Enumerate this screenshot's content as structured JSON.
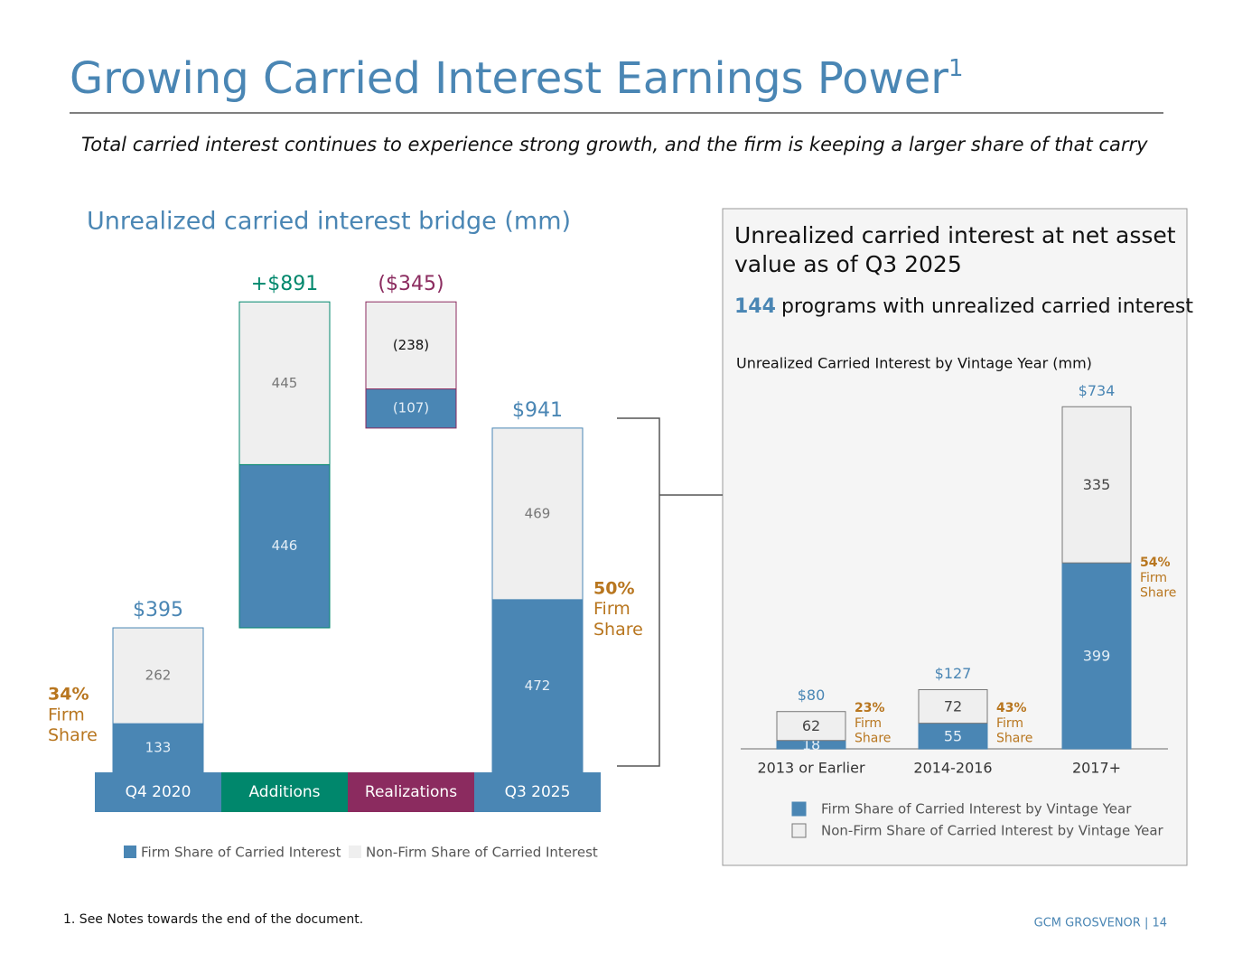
{
  "slide": {
    "title": "Growing Carried Interest Earnings Power",
    "title_sup": "1",
    "subtitle": "Total carried interest continues to experience strong growth, and the firm is keeping a larger share of that carry",
    "footnote": "1. See Notes towards the end of the document.",
    "brand": "GCM GROSVENOR | 14"
  },
  "panel": {
    "title": [
      "Unrealized carried interest at net asset",
      "value as of Q3 2025"
    ],
    "count": 144,
    "count_text": "programs with unrealized carried interest"
  },
  "chart_data": [
    {
      "type": "waterfall",
      "title": "Unrealized carried interest bridge (mm)",
      "categories": [
        "Q4 2020",
        "Additions",
        "Realizations",
        "Q3 2025"
      ],
      "category_colors": [
        "#4a86b4",
        "#00876c",
        "#8b2b5f",
        "#4a86b4"
      ],
      "series": [
        {
          "name": "Firm Share of Carried Interest",
          "color": "#4a86b4",
          "values": [
            133,
            446,
            -107,
            472
          ],
          "value_labels": [
            "133",
            "446",
            "(107)",
            "472"
          ]
        },
        {
          "name": "Non-Firm Share of Carried Interest",
          "color": "#efefef",
          "values": [
            262,
            445,
            -238,
            469
          ],
          "value_labels": [
            "262",
            "445",
            "(238)",
            "469"
          ]
        }
      ],
      "totals": [
        395,
        891,
        -345,
        941
      ],
      "total_labels": [
        "$395",
        "+$891",
        "($345)",
        "$941"
      ],
      "firm_share_labels": [
        "34%",
        null,
        null,
        "50%"
      ],
      "firm_share_text": [
        "Firm",
        "Share"
      ],
      "annotation_color": "#b8761f"
    },
    {
      "type": "stacked_bar",
      "title": "Unrealized Carried Interest by Vintage Year (mm)",
      "categories": [
        "2013 or Earlier",
        "2014-2016",
        "2017+"
      ],
      "series": [
        {
          "name": "Firm Share of Carried Interest by Vintage Year",
          "color": "#4a86b4",
          "values": [
            18,
            55,
            399
          ]
        },
        {
          "name": "Non-Firm Share of Carried Interest by Vintage Year",
          "color": "#efefef",
          "values": [
            62,
            72,
            335
          ]
        }
      ],
      "totals": [
        80,
        127,
        734
      ],
      "total_labels": [
        "$80",
        "$127",
        "$734"
      ],
      "firm_share_labels": [
        "23%",
        "43%",
        "54%"
      ],
      "firm_share_text": [
        "Firm",
        "Share"
      ],
      "annotation_color": "#b8761f"
    }
  ]
}
